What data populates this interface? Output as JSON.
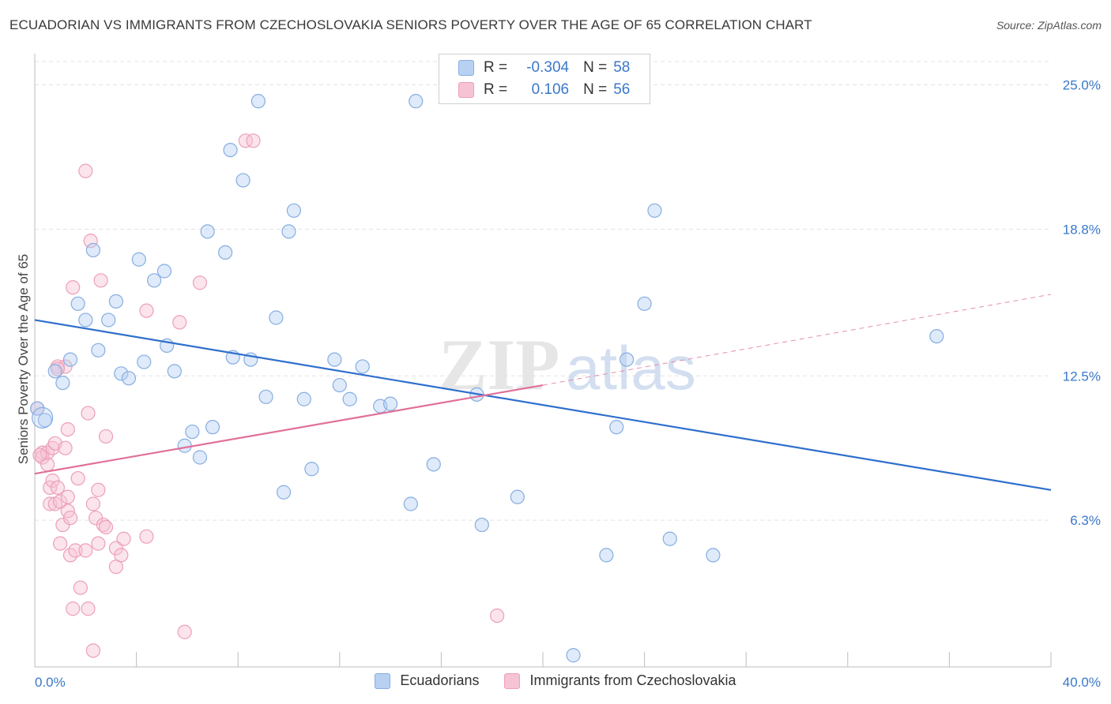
{
  "title": "ECUADORIAN VS IMMIGRANTS FROM CZECHOSLOVAKIA SENIORS POVERTY OVER THE AGE OF 65 CORRELATION CHART",
  "source": "Source: ZipAtlas.com",
  "watermark": {
    "zip": "ZIP",
    "atlas": "atlas"
  },
  "legend_top": {
    "rows": [
      {
        "r_label": "R =",
        "r_value": "-0.304",
        "n_label": "N =",
        "n_value": "58"
      },
      {
        "r_label": "R =",
        "r_value": "0.106",
        "n_label": "N =",
        "n_value": "56"
      }
    ]
  },
  "colors": {
    "blue_fill": "#b8d1f3",
    "blue_stroke": "#86aee0",
    "blue_line": "#2f6fcc",
    "pink_fill": "#f6c3d4",
    "pink_stroke": "#ec9fb9",
    "pink_line": "#e0709a",
    "tick_label": "#3a78c9",
    "grid": "#e3e3e3"
  },
  "chart_data": {
    "type": "scatter",
    "title": "ECUADORIAN VS IMMIGRANTS FROM CZECHOSLOVAKIA SENIORS POVERTY OVER THE AGE OF 65 CORRELATION CHART",
    "xlabel": "",
    "ylabel": "Seniors Poverty Over the Age of 65",
    "xlim": [
      0,
      40
    ],
    "ylim": [
      0,
      26
    ],
    "x_tick_labels": [
      "0.0%",
      "40.0%"
    ],
    "y_ticks": [
      6.3,
      12.5,
      18.8,
      25.0
    ],
    "y_tick_labels": [
      "6.3%",
      "12.5%",
      "18.8%",
      "25.0%"
    ],
    "grid": true,
    "legend_position": "bottom",
    "series": [
      {
        "name": "Ecuadorians",
        "r": -0.304,
        "n": 58,
        "trend": {
          "x": [
            0,
            40
          ],
          "y": [
            14.9,
            7.6
          ]
        },
        "points": [
          [
            0.4,
            10.6
          ],
          [
            0.8,
            12.7
          ],
          [
            1.1,
            12.2
          ],
          [
            1.4,
            13.2
          ],
          [
            1.7,
            15.6
          ],
          [
            2.0,
            14.9
          ],
          [
            2.3,
            17.9
          ],
          [
            2.5,
            13.6
          ],
          [
            2.9,
            14.9
          ],
          [
            3.2,
            15.7
          ],
          [
            3.4,
            12.6
          ],
          [
            3.7,
            12.4
          ],
          [
            4.1,
            17.5
          ],
          [
            4.3,
            13.1
          ],
          [
            4.7,
            16.6
          ],
          [
            5.1,
            17.0
          ],
          [
            5.2,
            13.8
          ],
          [
            5.5,
            12.7
          ],
          [
            5.9,
            9.5
          ],
          [
            6.2,
            10.1
          ],
          [
            6.5,
            9.0
          ],
          [
            6.8,
            18.7
          ],
          [
            7.0,
            10.3
          ],
          [
            7.5,
            17.8
          ],
          [
            7.7,
            22.2
          ],
          [
            7.8,
            13.3
          ],
          [
            8.2,
            20.9
          ],
          [
            8.5,
            13.2
          ],
          [
            8.8,
            24.3
          ],
          [
            9.1,
            11.6
          ],
          [
            9.5,
            15.0
          ],
          [
            9.8,
            7.5
          ],
          [
            10.0,
            18.7
          ],
          [
            10.2,
            19.6
          ],
          [
            10.6,
            11.5
          ],
          [
            10.9,
            8.5
          ],
          [
            11.8,
            13.2
          ],
          [
            12.0,
            12.1
          ],
          [
            12.4,
            11.5
          ],
          [
            12.9,
            12.9
          ],
          [
            13.6,
            11.2
          ],
          [
            14.0,
            11.3
          ],
          [
            14.8,
            7.0
          ],
          [
            15.0,
            24.3
          ],
          [
            15.7,
            8.7
          ],
          [
            17.4,
            11.7
          ],
          [
            17.6,
            6.1
          ],
          [
            19.0,
            7.3
          ],
          [
            21.2,
            0.5
          ],
          [
            22.5,
            4.8
          ],
          [
            22.9,
            10.3
          ],
          [
            23.3,
            13.2
          ],
          [
            24.0,
            15.6
          ],
          [
            24.4,
            19.6
          ],
          [
            25.0,
            5.5
          ],
          [
            26.7,
            4.8
          ],
          [
            35.5,
            14.2
          ],
          [
            0.1,
            11.1
          ]
        ]
      },
      {
        "name": "Immigrants from Czechoslovakia",
        "r": 0.106,
        "n": 56,
        "trend_solid": {
          "x": [
            0,
            20
          ],
          "y": [
            8.3,
            12.1
          ]
        },
        "trend_dashed": {
          "x": [
            20,
            40
          ],
          "y": [
            12.1,
            16.0
          ]
        },
        "points": [
          [
            0.1,
            11.1
          ],
          [
            0.3,
            9.2
          ],
          [
            0.3,
            9.0
          ],
          [
            0.5,
            8.7
          ],
          [
            0.5,
            9.2
          ],
          [
            0.6,
            7.7
          ],
          [
            0.6,
            7.0
          ],
          [
            0.7,
            8.0
          ],
          [
            0.7,
            9.4
          ],
          [
            0.8,
            9.6
          ],
          [
            0.8,
            7.0
          ],
          [
            0.9,
            12.9
          ],
          [
            0.9,
            7.7
          ],
          [
            1.0,
            5.3
          ],
          [
            1.0,
            7.1
          ],
          [
            1.1,
            6.1
          ],
          [
            1.2,
            9.4
          ],
          [
            1.2,
            12.9
          ],
          [
            1.3,
            10.2
          ],
          [
            1.3,
            7.3
          ],
          [
            1.3,
            6.7
          ],
          [
            1.4,
            4.8
          ],
          [
            1.4,
            6.4
          ],
          [
            1.5,
            16.3
          ],
          [
            1.5,
            2.5
          ],
          [
            1.6,
            5.0
          ],
          [
            1.7,
            8.1
          ],
          [
            1.8,
            3.4
          ],
          [
            2.0,
            5.0
          ],
          [
            2.0,
            21.3
          ],
          [
            2.1,
            10.9
          ],
          [
            2.1,
            2.5
          ],
          [
            2.2,
            18.3
          ],
          [
            2.3,
            7.0
          ],
          [
            2.3,
            0.7
          ],
          [
            2.4,
            6.4
          ],
          [
            2.5,
            7.6
          ],
          [
            2.5,
            5.3
          ],
          [
            2.6,
            16.6
          ],
          [
            2.7,
            6.1
          ],
          [
            2.8,
            6.0
          ],
          [
            2.8,
            9.9
          ],
          [
            3.2,
            5.1
          ],
          [
            3.2,
            4.3
          ],
          [
            3.4,
            4.8
          ],
          [
            3.5,
            5.5
          ],
          [
            4.4,
            15.3
          ],
          [
            4.4,
            5.6
          ],
          [
            5.7,
            14.8
          ],
          [
            5.9,
            1.5
          ],
          [
            6.5,
            16.5
          ],
          [
            8.3,
            22.6
          ],
          [
            8.6,
            22.6
          ],
          [
            18.2,
            2.2
          ],
          [
            0.2,
            9.1
          ],
          [
            0.9,
            12.8
          ]
        ]
      }
    ]
  }
}
